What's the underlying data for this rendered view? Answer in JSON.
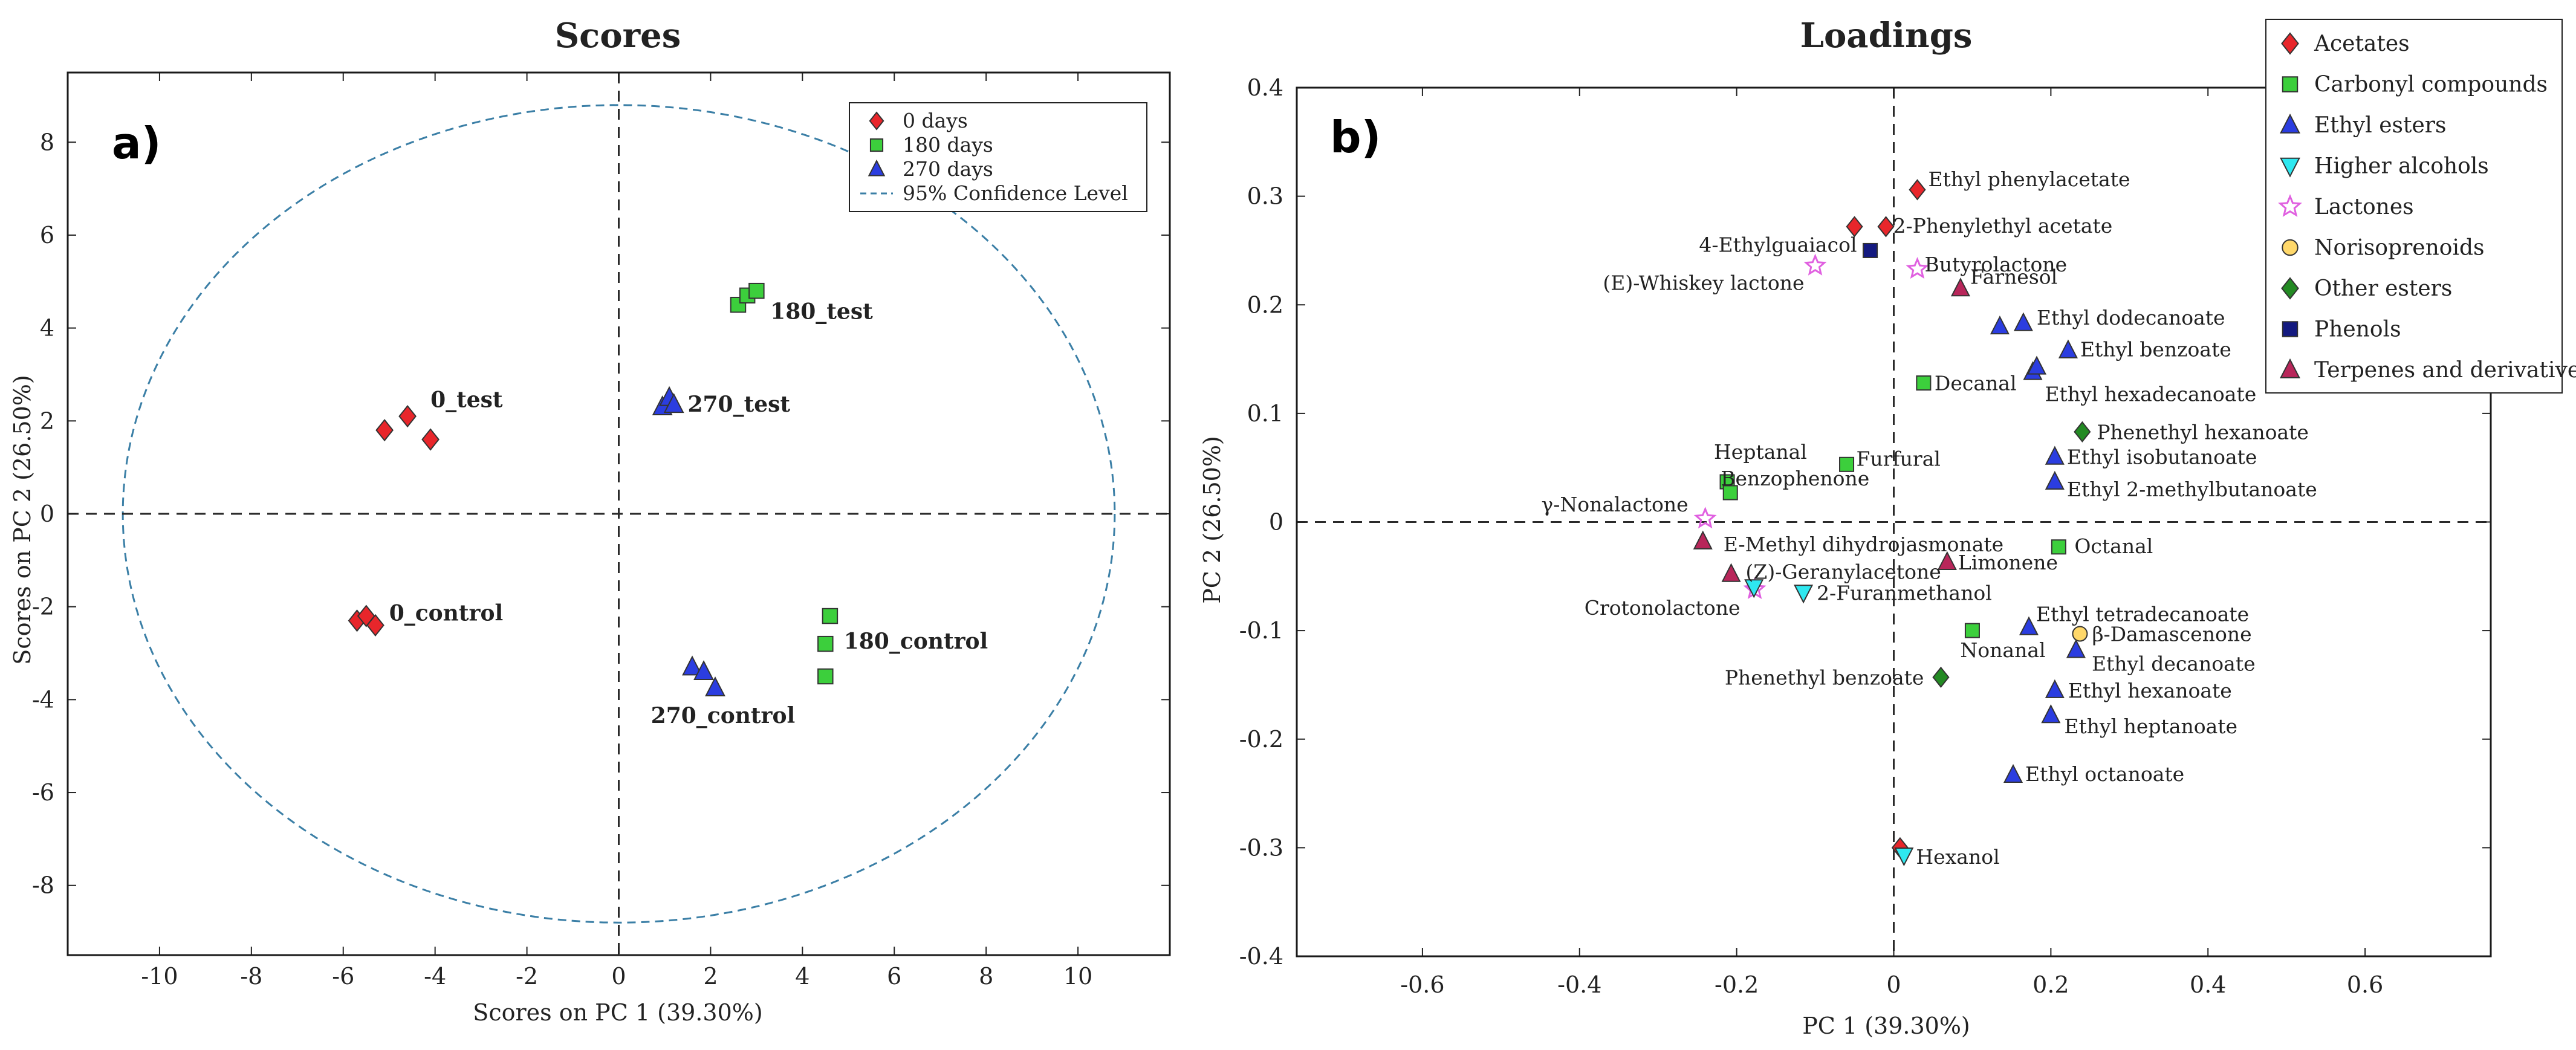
{
  "chart_data": [
    {
      "type": "scatter",
      "panel_label": "a)",
      "title": "Scores",
      "xlabel": "Scores on PC 1 (39.30%)",
      "ylabel": "Scores on PC 2 (26.50%)",
      "xlim": [
        -12,
        12
      ],
      "ylim": [
        -9.5,
        9.5
      ],
      "xticks": [
        -10,
        -8,
        -6,
        -4,
        -2,
        0,
        2,
        4,
        6,
        8,
        10
      ],
      "yticks": [
        -8,
        -6,
        -4,
        -2,
        0,
        2,
        4,
        6,
        8
      ],
      "legend_position": "top-right",
      "legend": [
        {
          "label": "0 days",
          "marker": "diamond",
          "color": "#e8262b"
        },
        {
          "label": "180 days",
          "marker": "square",
          "color": "#3ccf3c"
        },
        {
          "label": "270 days",
          "marker": "triangle-up",
          "color": "#2b3de0"
        },
        {
          "label": "95% Confidence Level",
          "marker": "dashed-line",
          "color": "#3b7fa6"
        }
      ],
      "confidence_ellipse": {
        "cx": 0,
        "cy": 0,
        "rx": 10.8,
        "ry": 8.8
      },
      "series": [
        {
          "name": "0 days",
          "marker": "diamond",
          "color": "#e8262b",
          "points": [
            [
              -5.1,
              1.8
            ],
            [
              -4.6,
              2.1
            ],
            [
              -4.1,
              1.6
            ],
            [
              -5.7,
              -2.3
            ],
            [
              -5.5,
              -2.2
            ],
            [
              -5.3,
              -2.4
            ]
          ]
        },
        {
          "name": "180 days",
          "marker": "square",
          "color": "#3ccf3c",
          "points": [
            [
              2.6,
              4.5
            ],
            [
              2.8,
              4.7
            ],
            [
              3.0,
              4.8
            ],
            [
              4.6,
              -2.2
            ],
            [
              4.5,
              -2.8
            ],
            [
              4.5,
              -3.5
            ]
          ]
        },
        {
          "name": "270 days",
          "marker": "triangle-up",
          "color": "#2b3de0",
          "points": [
            [
              0.95,
              2.3
            ],
            [
              1.1,
              2.5
            ],
            [
              1.2,
              2.35
            ],
            [
              1.6,
              -3.3
            ],
            [
              1.85,
              -3.4
            ],
            [
              2.1,
              -3.75
            ]
          ]
        }
      ],
      "group_labels": [
        {
          "text": "0_test",
          "x": -4.1,
          "y": 2.3
        },
        {
          "text": "180_test",
          "x": 3.3,
          "y": 4.2
        },
        {
          "text": "270_test",
          "x": 1.5,
          "y": 2.2
        },
        {
          "text": "0_control",
          "x": -5.0,
          "y": -2.3
        },
        {
          "text": "180_control",
          "x": 4.9,
          "y": -2.9
        },
        {
          "text": "270_control",
          "x": 0.7,
          "y": -4.5
        }
      ]
    },
    {
      "type": "scatter",
      "panel_label": "b)",
      "title": "Loadings",
      "xlabel": "PC 1 (39.30%)",
      "ylabel": "PC 2 (26.50%)",
      "xlim": [
        -0.76,
        0.76
      ],
      "ylim": [
        -0.4,
        0.4
      ],
      "xticks": [
        -0.6,
        -0.4,
        -0.2,
        0,
        0.2,
        0.4,
        0.6
      ],
      "yticks": [
        -0.4,
        -0.3,
        -0.2,
        -0.1,
        0,
        0.1,
        0.2,
        0.3,
        0.4
      ],
      "legend_position": "top-right",
      "legend": [
        {
          "label": "Acetates",
          "marker": "diamond",
          "color": "#e8262b"
        },
        {
          "label": "Carbonyl compounds",
          "marker": "square",
          "color": "#3ccf3c"
        },
        {
          "label": "Ethyl esters",
          "marker": "triangle-up",
          "color": "#2b3de0"
        },
        {
          "label": "Higher alcohols",
          "marker": "triangle-down",
          "color": "#2ee8f0"
        },
        {
          "label": "Lactones",
          "marker": "star",
          "color": "#e060e0"
        },
        {
          "label": "Norisoprenoids",
          "marker": "circle",
          "color": "#ffd86a"
        },
        {
          "label": "Other esters",
          "marker": "diamond",
          "color": "#238a23"
        },
        {
          "label": "Phenols",
          "marker": "square",
          "color": "#141a80"
        },
        {
          "label": "Terpenes and derivatives",
          "marker": "triangle-up",
          "color": "#b8265a"
        }
      ],
      "points": [
        {
          "label": "Ethyl phenylacetate",
          "group": "Acetates",
          "x": 0.03,
          "y": 0.306
        },
        {
          "label": "2-Phenylethyl acetate",
          "group": "Acetates",
          "x": -0.01,
          "y": 0.272
        },
        {
          "label": "",
          "group": "Acetates",
          "x": -0.05,
          "y": 0.272
        },
        {
          "label": "",
          "group": "Acetates",
          "x": 0.008,
          "y": -0.3
        },
        {
          "label": "4-Ethylguaiacol",
          "group": "Phenols",
          "x": -0.03,
          "y": 0.25
        },
        {
          "label": "(E)-Whiskey lactone",
          "group": "Lactones",
          "x": -0.1,
          "y": 0.236
        },
        {
          "label": "Butyrolactone",
          "group": "Lactones",
          "x": 0.03,
          "y": 0.233
        },
        {
          "label": "γ-Nonalactone",
          "group": "Lactones",
          "x": -0.24,
          "y": 0.003
        },
        {
          "label": "Crotonolactone",
          "group": "Lactones",
          "x": -0.177,
          "y": -0.062
        },
        {
          "label": "Farnesol",
          "group": "Terpenes and derivatives",
          "x": 0.085,
          "y": 0.215
        },
        {
          "label": "E-Methyl dihydrojasmonate",
          "group": "Terpenes and derivatives",
          "x": -0.243,
          "y": -0.018
        },
        {
          "label": "(Z)-Geranylacetone",
          "group": "Terpenes and derivatives",
          "x": -0.207,
          "y": -0.048
        },
        {
          "label": "Limonene",
          "group": "Terpenes and derivatives",
          "x": 0.068,
          "y": -0.037
        },
        {
          "label": "",
          "group": "Ethyl esters",
          "x": 0.135,
          "y": 0.18
        },
        {
          "label": "Ethyl dodecanoate",
          "group": "Ethyl esters",
          "x": 0.165,
          "y": 0.183
        },
        {
          "label": "Ethyl benzoate",
          "group": "Ethyl esters",
          "x": 0.222,
          "y": 0.158
        },
        {
          "label": "Ethyl hexadecanoate",
          "group": "Ethyl esters",
          "x": 0.177,
          "y": 0.138
        },
        {
          "label": "",
          "group": "Ethyl esters",
          "x": 0.182,
          "y": 0.143
        },
        {
          "label": "Ethyl isobutanoate",
          "group": "Ethyl esters",
          "x": 0.205,
          "y": 0.06
        },
        {
          "label": "Ethyl 2-methylbutanoate",
          "group": "Ethyl esters",
          "x": 0.205,
          "y": 0.037
        },
        {
          "label": "Ethyl tetradecanoate",
          "group": "Ethyl esters",
          "x": 0.172,
          "y": -0.097
        },
        {
          "label": "Ethyl decanoate",
          "group": "Ethyl esters",
          "x": 0.232,
          "y": -0.118
        },
        {
          "label": "Ethyl hexanoate",
          "group": "Ethyl esters",
          "x": 0.205,
          "y": -0.155
        },
        {
          "label": "Ethyl heptanoate",
          "group": "Ethyl esters",
          "x": 0.2,
          "y": -0.178
        },
        {
          "label": "Ethyl octanoate",
          "group": "Ethyl esters",
          "x": 0.152,
          "y": -0.233
        },
        {
          "label": "Decanal",
          "group": "Carbonyl compounds",
          "x": 0.038,
          "y": 0.128
        },
        {
          "label": "Heptanal",
          "group": "Carbonyl compounds",
          "x": -0.212,
          "y": 0.037
        },
        {
          "label": "Benzophenone",
          "group": "Carbonyl compounds",
          "x": -0.208,
          "y": 0.027
        },
        {
          "label": "Furfural",
          "group": "Carbonyl compounds",
          "x": -0.06,
          "y": 0.053
        },
        {
          "label": "Octanal",
          "group": "Carbonyl compounds",
          "x": 0.21,
          "y": -0.023
        },
        {
          "label": "Nonanal",
          "group": "Carbonyl compounds",
          "x": 0.1,
          "y": -0.1
        },
        {
          "label": "2-Furanmethanol",
          "group": "Higher alcohols",
          "x": -0.115,
          "y": -0.065
        },
        {
          "label": "",
          "group": "Higher alcohols",
          "x": -0.178,
          "y": -0.06
        },
        {
          "label": "Hexanol",
          "group": "Higher alcohols",
          "x": 0.013,
          "y": -0.307
        },
        {
          "label": "β-Damascenone",
          "group": "Norisoprenoids",
          "x": 0.237,
          "y": -0.103
        },
        {
          "label": "Phenethyl hexanoate",
          "group": "Other esters",
          "x": 0.24,
          "y": 0.083
        },
        {
          "label": "Phenethyl benzoate",
          "group": "Other esters",
          "x": 0.06,
          "y": -0.143
        }
      ]
    }
  ],
  "label_offsets_note": "",
  "colors": {
    "frame": "#1a1a1a",
    "dashed_axes": "#2a2a2a",
    "ellipse": "#3b7fa6"
  }
}
